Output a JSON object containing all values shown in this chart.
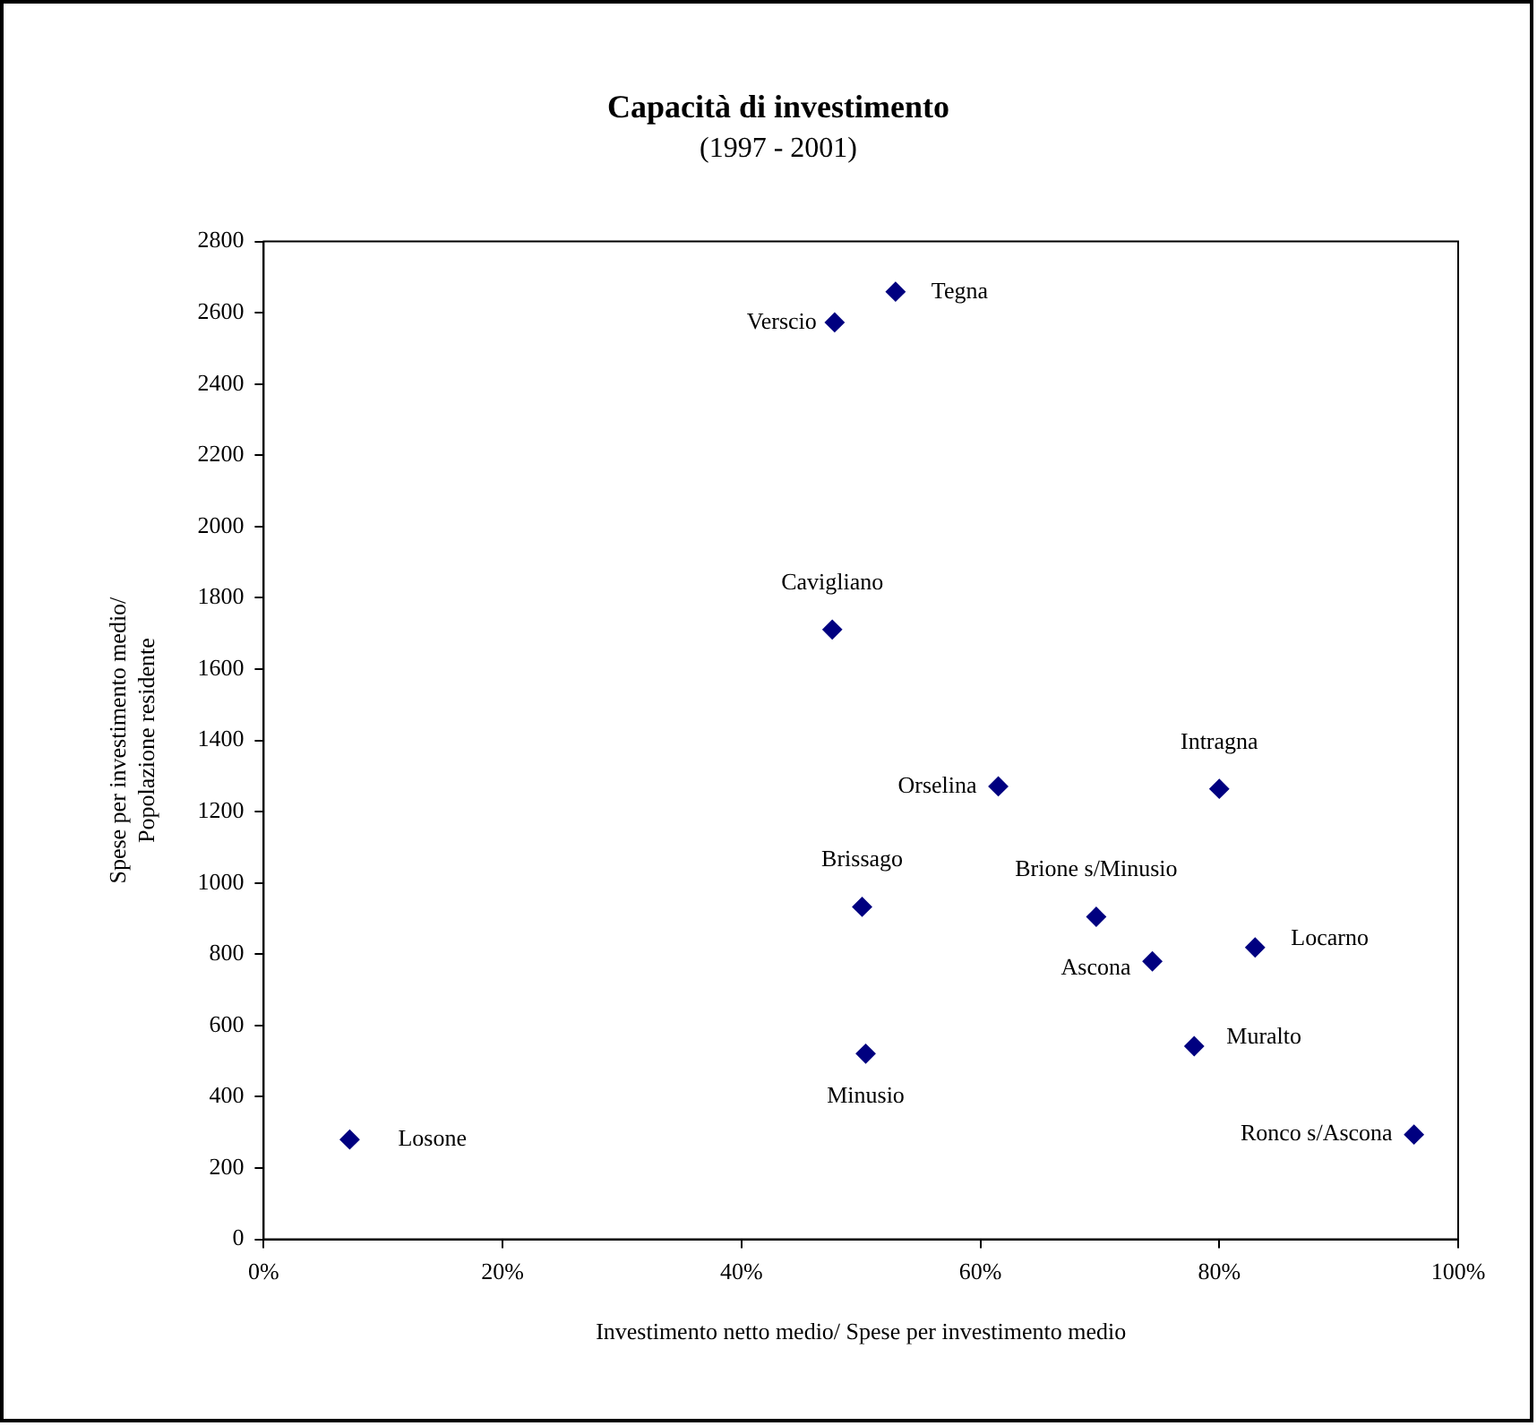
{
  "chart_data": {
    "type": "scatter",
    "title": "Capacità di investimento",
    "subtitle": "(1997 - 2001)",
    "xlabel": "Investimento netto medio/ Spese per investimento medio",
    "ylabel": "Spese per investimento medio/\nPopolazione residente",
    "x": [
      7.2,
      47.8,
      52.9,
      47.6,
      61.5,
      80.0,
      50.1,
      69.7,
      50.4,
      74.4,
      83.0,
      77.9,
      96.3
    ],
    "series": [
      {
        "color": "#000080",
        "values": [
          280,
          2573,
          2659,
          1711,
          1271,
          1264,
          933,
          905,
          521,
          780,
          819,
          542,
          294
        ]
      }
    ],
    "annotations": [
      {
        "text": "Losone",
        "x": 7.2,
        "y": 280
      },
      {
        "text": "Verscio",
        "x": 47.8,
        "y": 2573
      },
      {
        "text": "Tegna",
        "x": 52.9,
        "y": 2659
      },
      {
        "text": "Cavigliano",
        "x": 47.6,
        "y": 1711
      },
      {
        "text": "Orselina",
        "x": 61.5,
        "y": 1271
      },
      {
        "text": "Intragna",
        "x": 80.0,
        "y": 1264
      },
      {
        "text": "Brissago",
        "x": 50.1,
        "y": 933
      },
      {
        "text": "Brione s/Minusio",
        "x": 69.7,
        "y": 905
      },
      {
        "text": "Minusio",
        "x": 50.4,
        "y": 521
      },
      {
        "text": "Ascona",
        "x": 74.4,
        "y": 780
      },
      {
        "text": "Locarno",
        "x": 83.0,
        "y": 819
      },
      {
        "text": "Muralto",
        "x": 77.9,
        "y": 542
      },
      {
        "text": "Ronco s/Ascona",
        "x": 96.3,
        "y": 294
      }
    ],
    "xlim": [
      0,
      100
    ],
    "xticks": [
      {
        "value": 0,
        "label": "0%"
      },
      {
        "value": 20,
        "label": "20%"
      },
      {
        "value": 40,
        "label": "40%"
      },
      {
        "value": 60,
        "label": "60%"
      },
      {
        "value": 80,
        "label": "80%"
      },
      {
        "value": 100,
        "label": "100%"
      }
    ],
    "ylim": [
      0,
      2800
    ],
    "yticks": [
      0,
      200,
      400,
      600,
      800,
      1000,
      1200,
      1400,
      1600,
      1800,
      2000,
      2200,
      2400,
      2600,
      2800
    ],
    "grid": false,
    "legend": false,
    "marker": "diamond"
  }
}
